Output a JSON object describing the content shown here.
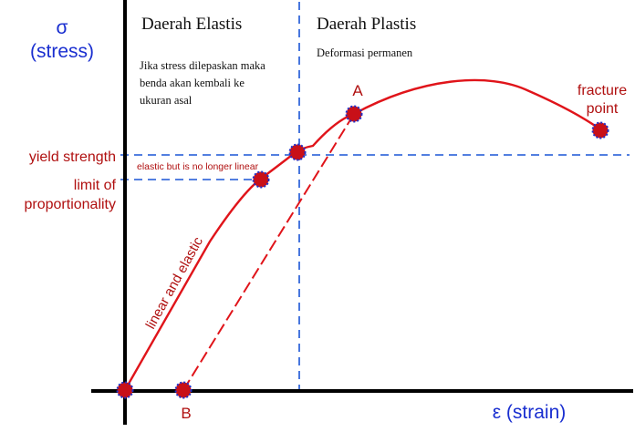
{
  "y_axis": {
    "symbol": "σ",
    "label": "(stress)"
  },
  "x_axis": {
    "label": "ε (strain)"
  },
  "regions": {
    "elastic": {
      "title": "Daerah Elastis",
      "note_lines": [
        "Jika stress dilepaskan maka",
        "benda akan kembali ke",
        "ukuran asal"
      ]
    },
    "plastic": {
      "title": "Daerah Plastis",
      "note": "Deformasi permanen"
    }
  },
  "labels": {
    "yield_strength": "yield strength",
    "limit_line1": "limit of",
    "limit_line2": "proportionality",
    "elastic_nonlinear": "elastic but is no longer linear",
    "linear_elastic": "linear and elastic",
    "point_a": "A",
    "point_b": "B",
    "fracture_line1": "fracture",
    "fracture_line2": "point"
  },
  "colors": {
    "axis": "#000000",
    "curve": "#e0141a",
    "guide": "#1a55d6",
    "point_fill": "#c81018",
    "point_ring": "#2030c8",
    "axis_title": "#1a2fd0",
    "annotation": "#b01010"
  }
}
